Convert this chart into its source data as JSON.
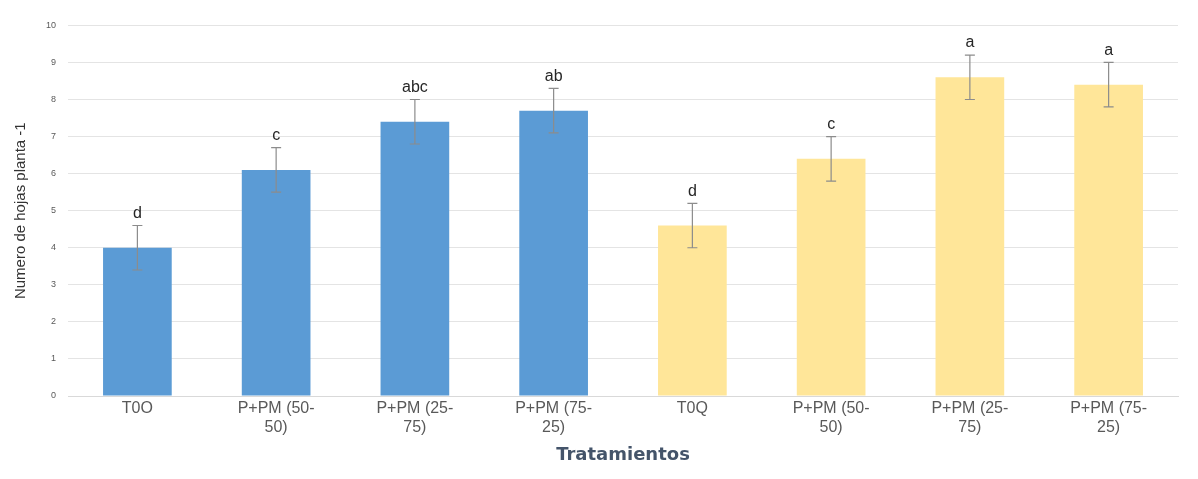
{
  "chart_data": {
    "type": "bar",
    "xlabel": "Tratamientos",
    "ylabel": "Numero de hojas planta -1",
    "categories": [
      "T0O",
      "P+PM (50-50)",
      "P+PM (25-75)",
      "P+PM (75-25)",
      "T0Q",
      "P+PM (50-50)",
      "P+PM (25-75)",
      "P+PM (75-25)"
    ],
    "values": [
      4.0,
      6.1,
      7.4,
      7.7,
      4.6,
      6.4,
      8.6,
      8.4
    ],
    "colors": [
      "#5b9bd5",
      "#5b9bd5",
      "#5b9bd5",
      "#5b9bd5",
      "#ffe699",
      "#ffe699",
      "#ffe699",
      "#ffe699"
    ],
    "errors": [
      0.6,
      0.6,
      0.6,
      0.6,
      0.6,
      0.6,
      0.6,
      0.6
    ],
    "ylim": [
      0,
      10
    ],
    "yticks": [
      0,
      1,
      2,
      3,
      4,
      5,
      6,
      7,
      8,
      9,
      10
    ],
    "grid": "y",
    "legend": false,
    "annotations": [
      "d",
      "c",
      "abc",
      "ab",
      "d",
      "c",
      "a",
      "a"
    ]
  }
}
